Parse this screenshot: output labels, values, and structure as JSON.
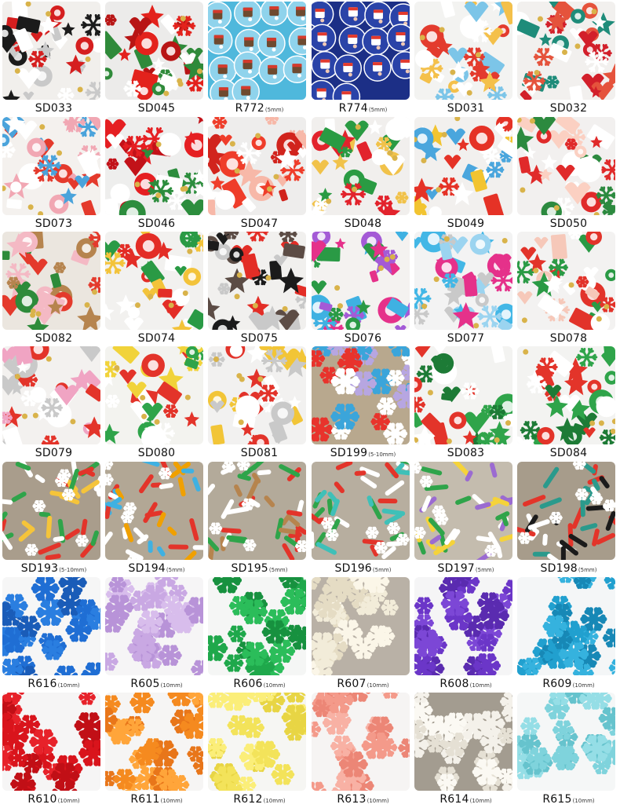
{
  "items": [
    {
      "code": "SD033",
      "size": "",
      "style": "mix",
      "bg": "#f1efec",
      "colors": [
        "#d51f1f",
        "#1b1b1b",
        "#ffffff",
        "#c9c9c9"
      ]
    },
    {
      "code": "SD045",
      "size": "",
      "style": "mix",
      "bg": "#ecebea",
      "colors": [
        "#e3221c",
        "#2f8a3a",
        "#ffffff",
        "#b81515"
      ]
    },
    {
      "code": "R772",
      "size": "(5mm)",
      "style": "discs",
      "bg": "#4fb8dc",
      "colors": [
        "#8fd3ec",
        "#6e4a2f",
        "#d53a2c",
        "#ffffff"
      ]
    },
    {
      "code": "R774",
      "size": "(5mm)",
      "style": "discs",
      "bg": "#1c2f86",
      "colors": [
        "#2a43a8",
        "#ffffff",
        "#e23a2d",
        "#f0c9b5"
      ]
    },
    {
      "code": "SD031",
      "size": "",
      "style": "mix",
      "bg": "#f3f3f1",
      "colors": [
        "#e33b2e",
        "#ffffff",
        "#f4c04a",
        "#7cc5e8"
      ]
    },
    {
      "code": "SD032",
      "size": "",
      "style": "mix",
      "bg": "#f2f0ee",
      "colors": [
        "#e5533c",
        "#1f8c7a",
        "#ffffff",
        "#d21f2a"
      ]
    },
    {
      "code": "SD073",
      "size": "",
      "style": "mix",
      "bg": "#f4f1ee",
      "colors": [
        "#f1a7b3",
        "#ffffff",
        "#e43a2c",
        "#4aa3db"
      ]
    },
    {
      "code": "SD046",
      "size": "",
      "style": "mix",
      "bg": "#eeeeed",
      "colors": [
        "#e51f22",
        "#ffffff",
        "#c21219",
        "#2c8d3d"
      ]
    },
    {
      "code": "SD047",
      "size": "",
      "style": "mix",
      "bg": "#eeedec",
      "colors": [
        "#ef3d2a",
        "#ffffff",
        "#d1241d",
        "#f7b8a8"
      ]
    },
    {
      "code": "SD048",
      "size": "",
      "style": "mix",
      "bg": "#f1efed",
      "colors": [
        "#e2232c",
        "#ffffff",
        "#2a9b43",
        "#f1c24a"
      ]
    },
    {
      "code": "SD049",
      "size": "",
      "style": "mix",
      "bg": "#f2f0ee",
      "colors": [
        "#e53226",
        "#ffffff",
        "#f2c431",
        "#4aa6dd"
      ]
    },
    {
      "code": "SD050",
      "size": "",
      "style": "mix",
      "bg": "#f2f0ef",
      "colors": [
        "#e02a2a",
        "#ffffff",
        "#fbd0c2",
        "#2c8a3f"
      ]
    },
    {
      "code": "SD082",
      "size": "",
      "style": "mix",
      "bg": "#ebe6df",
      "colors": [
        "#b6844e",
        "#f4b9c4",
        "#2e8b3a",
        "#e43a2c"
      ]
    },
    {
      "code": "SD074",
      "size": "",
      "style": "mix",
      "bg": "#f2f1ef",
      "colors": [
        "#e32d26",
        "#ffffff",
        "#2a9a45",
        "#f3c33a"
      ]
    },
    {
      "code": "SD075",
      "size": "",
      "style": "mix",
      "bg": "#f1f0ee",
      "colors": [
        "#5c4c45",
        "#1b1b1b",
        "#e32d26",
        "#c9c9c9"
      ]
    },
    {
      "code": "SD076",
      "size": "",
      "style": "mix",
      "bg": "#f4f2f0",
      "colors": [
        "#a45ad6",
        "#e5318a",
        "#3fb1e2",
        "#2a9a45"
      ]
    },
    {
      "code": "SD077",
      "size": "",
      "style": "mix",
      "bg": "#f3f3f3",
      "colors": [
        "#43b7e6",
        "#e5318a",
        "#9bd4f0",
        "#c9c9c9"
      ]
    },
    {
      "code": "SD078",
      "size": "",
      "style": "mix",
      "bg": "#f3f2f1",
      "colors": [
        "#e2332a",
        "#ffffff",
        "#f6c8b9",
        "#2a9a45"
      ]
    },
    {
      "code": "SD079",
      "size": "",
      "style": "mix",
      "bg": "#f3f1ef",
      "colors": [
        "#e3342a",
        "#ffffff",
        "#f0a4c3",
        "#c9c9c9"
      ]
    },
    {
      "code": "SD080",
      "size": "",
      "style": "mix",
      "bg": "#f3f3ef",
      "colors": [
        "#f1d33a",
        "#2fa44a",
        "#e3342a",
        "#ffffff"
      ]
    },
    {
      "code": "SD081",
      "size": "",
      "style": "mix",
      "bg": "#f2f1f0",
      "colors": [
        "#e2332a",
        "#ffffff",
        "#f2c537",
        "#c9c9c9"
      ]
    },
    {
      "code": "SD199",
      "size": "(5-10mm)",
      "style": "flakes",
      "bg": "#b8a88e",
      "colors": [
        "#e8332c",
        "#ffffff",
        "#3ba5da",
        "#b7a6e1"
      ]
    },
    {
      "code": "SD083",
      "size": "",
      "style": "mix",
      "bg": "#f3f3f1",
      "colors": [
        "#2fa44a",
        "#e3342a",
        "#ffffff",
        "#1d7b36"
      ]
    },
    {
      "code": "SD084",
      "size": "",
      "style": "mix",
      "bg": "#f3f3f1",
      "colors": [
        "#e3342a",
        "#2fa44a",
        "#ffffff",
        "#1d7b36"
      ]
    },
    {
      "code": "SD193",
      "size": "(5-10mm)",
      "style": "sprinkles",
      "bg": "#a99d8c",
      "colors": [
        "#e3342a",
        "#2fa44a",
        "#ffffff",
        "#f5c43a"
      ]
    },
    {
      "code": "SD194",
      "size": "(5mm)",
      "style": "sprinkles",
      "bg": "#b2a795",
      "colors": [
        "#3fb1e2",
        "#e3342a",
        "#ffffff",
        "#f0a000"
      ]
    },
    {
      "code": "SD195",
      "size": "(5mm)",
      "style": "sprinkles",
      "bg": "#b3aa9a",
      "colors": [
        "#2fa44a",
        "#b6844e",
        "#ffffff",
        "#e3342a"
      ]
    },
    {
      "code": "SD196",
      "size": "(5mm)",
      "style": "sprinkles",
      "bg": "#b7ae9f",
      "colors": [
        "#e3342a",
        "#3fc0b8",
        "#ffffff",
        "#2fa44a"
      ]
    },
    {
      "code": "SD197",
      "size": "(5mm)",
      "style": "sprinkles",
      "bg": "#c4bcae",
      "colors": [
        "#9b6bd1",
        "#f5d33a",
        "#ffffff",
        "#2fa44a"
      ]
    },
    {
      "code": "SD198",
      "size": "(5mm)",
      "style": "sprinkles",
      "bg": "#a79c8b",
      "colors": [
        "#e3342a",
        "#2a9a8c",
        "#1b1b1b",
        "#ffffff"
      ]
    },
    {
      "code": "R616",
      "size": "(10mm)",
      "style": "flakes",
      "bg": "#f6f6f6",
      "colors": [
        "#1f6ed4",
        "#2a7ee0",
        "#1a5cb8"
      ]
    },
    {
      "code": "R605",
      "size": "(10mm)",
      "style": "flakes",
      "bg": "#f6f5f6",
      "colors": [
        "#c9a8e3",
        "#d8bdec",
        "#b893d8"
      ]
    },
    {
      "code": "R606",
      "size": "(10mm)",
      "style": "flakes",
      "bg": "#f5f6f5",
      "colors": [
        "#1fa84b",
        "#2bbd5a",
        "#17913f"
      ]
    },
    {
      "code": "R607",
      "size": "(10mm)",
      "style": "flakes",
      "bg": "#b9b1a6",
      "colors": [
        "#f2ecd9",
        "#fbf6e8",
        "#e5dcc4"
      ]
    },
    {
      "code": "R608",
      "size": "(10mm)",
      "style": "flakes",
      "bg": "#f5f5f6",
      "colors": [
        "#6b36c8",
        "#7c47d6",
        "#5a2bb0"
      ]
    },
    {
      "code": "R609",
      "size": "(10mm)",
      "style": "flakes",
      "bg": "#f4f6f7",
      "colors": [
        "#21a0cf",
        "#35b2de",
        "#1788b6"
      ]
    },
    {
      "code": "R610",
      "size": "(10mm)",
      "style": "flakes",
      "bg": "#f6f5f5",
      "colors": [
        "#d9141c",
        "#e7222a",
        "#c10f16"
      ]
    },
    {
      "code": "R611",
      "size": "(10mm)",
      "style": "flakes",
      "bg": "#f6f5f4",
      "colors": [
        "#f58a1f",
        "#ffa53a",
        "#e8761a"
      ]
    },
    {
      "code": "R612",
      "size": "(10mm)",
      "style": "flakes",
      "bg": "#f6f6f3",
      "colors": [
        "#f3e35a",
        "#fbee79",
        "#e8d544"
      ]
    },
    {
      "code": "R613",
      "size": "(10mm)",
      "style": "flakes",
      "bg": "#f6f4f3",
      "colors": [
        "#f49a8a",
        "#f8b1a4",
        "#ec8676"
      ]
    },
    {
      "code": "R614",
      "size": "(10mm)",
      "style": "flakes",
      "bg": "#a39c90",
      "colors": [
        "#f4f1ea",
        "#fbf9f3",
        "#e5e0d4"
      ]
    },
    {
      "code": "R615",
      "size": "(10mm)",
      "style": "flakes",
      "bg": "#f5f7f7",
      "colors": [
        "#7fd3dc",
        "#95dee6",
        "#66c3cd"
      ]
    }
  ]
}
